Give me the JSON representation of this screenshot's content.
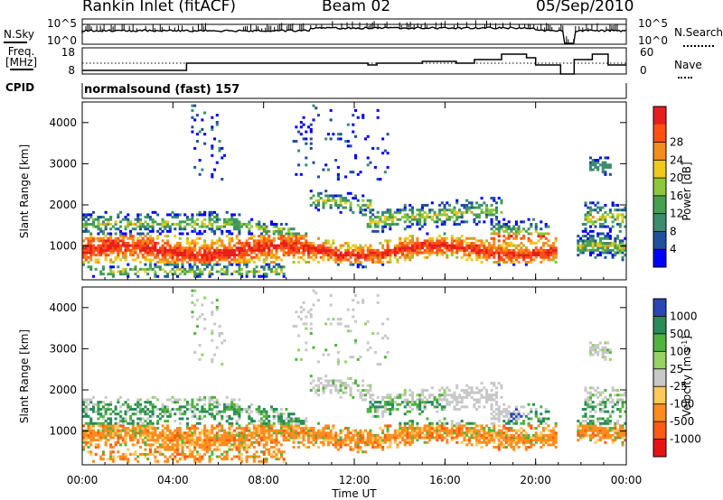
{
  "header": {
    "station": "Rankin Inlet (fitACF)",
    "beam": "Beam 02",
    "date": "05/Sep/2010"
  },
  "top_panels": {
    "nsky_label": "N.Sky",
    "nsky_ticks": [
      "10^5",
      "10^0"
    ],
    "nsearch_label": "N.Search",
    "nsearch_ticks": [
      "10^5",
      "10^0"
    ],
    "freq_label": "Freq.",
    "freq_unit": "[MHz]",
    "freq_ticks": [
      "18",
      "8"
    ],
    "nave_label": "Nave",
    "nave_ticks": [
      "60",
      "0"
    ],
    "cpid_label": "CPID",
    "cpid_text": "normalsound (fast) 157"
  },
  "chart_data": [
    {
      "type": "heatmap",
      "name": "power",
      "ylabel": "Slant Range [km]",
      "ylim": [
        180,
        4500
      ],
      "yticks": [
        "1000",
        "2000",
        "3000",
        "4000"
      ],
      "colorbar_label": "Power [dB]",
      "colorbar_ticks": [
        "4",
        "8",
        "12",
        "16",
        "20",
        "24",
        "28"
      ],
      "colors": [
        "#0000ff",
        "#1e50a0",
        "#3c8c6e",
        "#46a050",
        "#8cc83c",
        "#f0c81e",
        "#f58c1e",
        "#ff5014",
        "#e61e1e"
      ]
    },
    {
      "type": "heatmap",
      "name": "velocity",
      "ylabel": "Slant Range [km]",
      "ylim": [
        180,
        4500
      ],
      "yticks": [
        "1000",
        "2000",
        "3000",
        "4000"
      ],
      "colorbar_label": "Velocity [m s^-1]",
      "colorbar_ticks": [
        "1000",
        "500",
        "100",
        "25",
        "-25",
        "-100",
        "-500",
        "-1000"
      ],
      "colors": [
        "#2846b4",
        "#288c5a",
        "#50b43c",
        "#96d264",
        "#c8c8c8",
        "#ffc85a",
        "#ff8c1e",
        "#ff5a14",
        "#e61414"
      ]
    }
  ],
  "time_axis": {
    "label": "Time UT",
    "ticks": [
      "00:00",
      "04:00",
      "08:00",
      "12:00",
      "16:00",
      "20:00",
      "00:00"
    ]
  }
}
